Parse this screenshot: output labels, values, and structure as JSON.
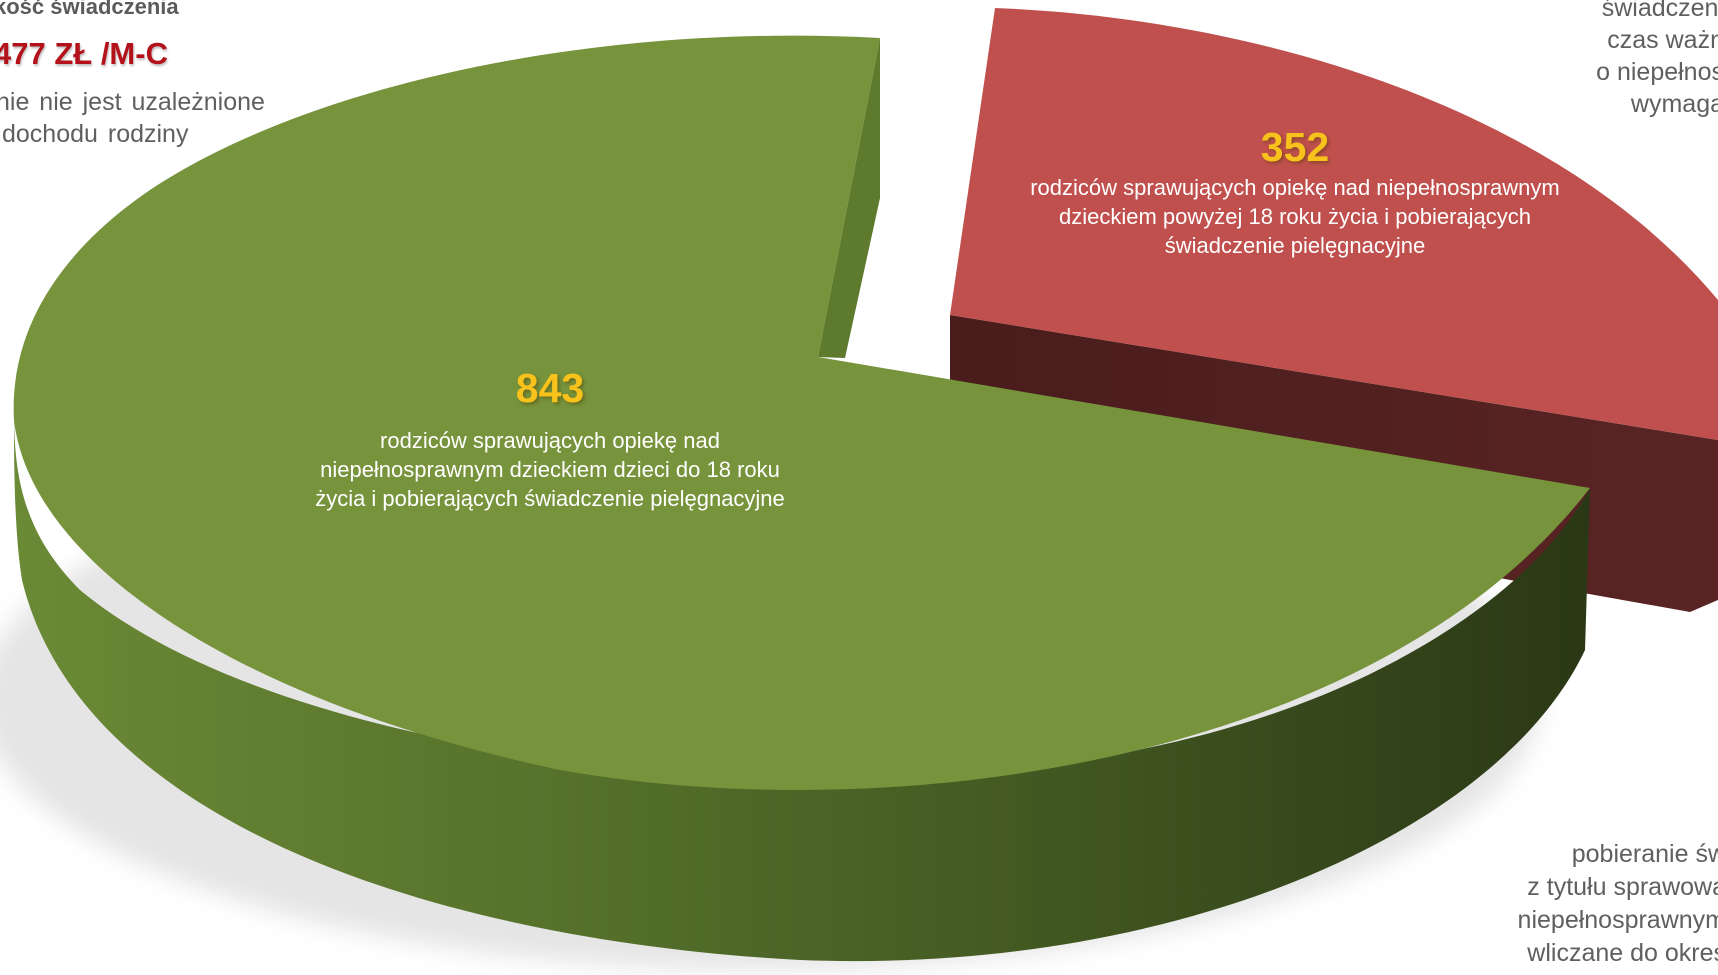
{
  "chart_data": {
    "type": "pie",
    "title": "",
    "slices": [
      {
        "value": 843,
        "value_label": "843",
        "description": "rodziców sprawujących opiekę nad niepełnosprawnym dzieckiem dzieci do 18 roku życia i pobierających świadczenie pielęgnacyjne",
        "color": "#77933c"
      },
      {
        "value": 352,
        "value_label": "352",
        "description": "rodziców sprawujących opiekę nad niepełnosprawnym dzieckiem powyżej 18 roku życia i pobierających świadczenie pielęgnacyjne",
        "color": "#c0504d"
      }
    ],
    "legend": "none",
    "style": "3d-exploded"
  },
  "side_text": {
    "top_left_heading": "kość świadczenia",
    "top_left_amount": "477 ZŁ /M-C",
    "top_left_note": [
      "nie nie jest uzależnione",
      "dochodu rodziny"
    ],
    "top_right_note": [
      "świadczeni",
      "czas ważn",
      "o niepełnos",
      "wymaga"
    ],
    "bottom_right_note": [
      "pobieranie św",
      "z tytułu sprawowa",
      "niepełnosprawnym",
      "wliczane do okres"
    ]
  },
  "colors": {
    "green_top": "#77933c",
    "green_side_dark": "#2e3d16",
    "red_top": "#c0504d",
    "red_side_dark": "#4f1e1e",
    "value_label": "#f7c21b"
  }
}
